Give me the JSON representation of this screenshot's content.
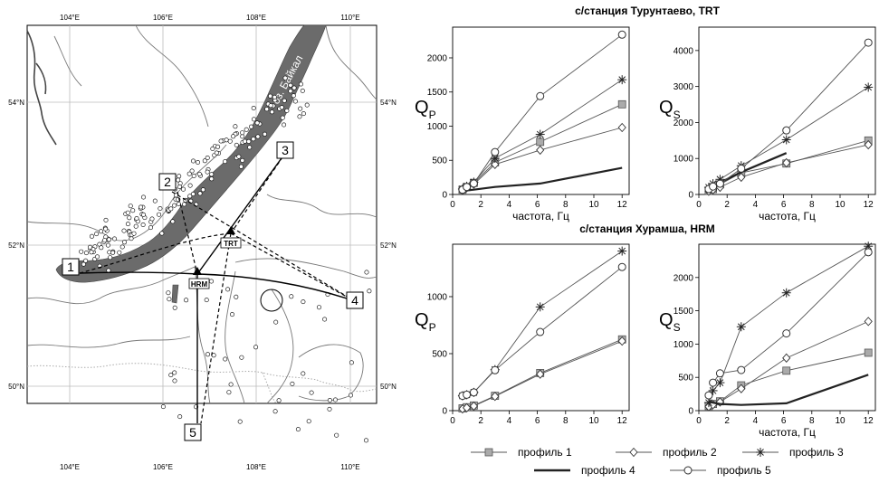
{
  "map": {
    "lon_labels": [
      "104°E",
      "106°E",
      "108°E",
      "110°E"
    ],
    "lat_labels_left": [
      "54°N",
      "52°N",
      "50°N"
    ],
    "lat_labels_right": [
      "54°N",
      "52°N",
      "50°N"
    ],
    "lake_label": "оз. Байкал",
    "profile_numbers": [
      "1",
      "2",
      "3",
      "4",
      "5"
    ],
    "stations": [
      "TRT",
      "HRM"
    ]
  },
  "legend": {
    "items": [
      {
        "label": "профиль 1",
        "marker": "square-gray"
      },
      {
        "label": "профиль 2",
        "marker": "diamond-open"
      },
      {
        "label": "профиль 3",
        "marker": "asterisk"
      },
      {
        "label": "профиль 4",
        "marker": "none-thick"
      },
      {
        "label": "профиль 5",
        "marker": "circle-open"
      }
    ]
  },
  "chart_data": [
    {
      "type": "line",
      "station_title": "с/станция Турунтаево, TRT",
      "ylabel": "Q",
      "ylabel_sub": "P",
      "xlabel": "частота, Гц",
      "xlim": [
        0,
        12.5
      ],
      "ylim": [
        0,
        2450
      ],
      "xticks": [
        0,
        2,
        4,
        6,
        8,
        10,
        12
      ],
      "yticks": [
        0,
        500,
        1000,
        1500,
        2000
      ],
      "series": [
        {
          "name": "профиль 1",
          "x": [
            0.7,
            1,
            1.5,
            3,
            6.2,
            12
          ],
          "y": [
            70,
            110,
            170,
            470,
            770,
            1320
          ]
        },
        {
          "name": "профиль 2",
          "x": [
            0.7,
            1,
            1.5,
            3,
            6.2,
            12
          ],
          "y": [
            60,
            100,
            150,
            440,
            650,
            980
          ]
        },
        {
          "name": "профиль 3",
          "x": [
            0.7,
            1,
            1.5,
            3,
            6.2,
            12
          ],
          "y": [
            80,
            120,
            180,
            530,
            880,
            1680
          ]
        },
        {
          "name": "профиль 4",
          "x": [
            0.7,
            1,
            1.5,
            3,
            6.2,
            12
          ],
          "y": [
            40,
            60,
            70,
            110,
            160,
            390
          ]
        },
        {
          "name": "профиль 5",
          "x": [
            0.7,
            1,
            1.5,
            3,
            6.2,
            12
          ],
          "y": [
            70,
            110,
            160,
            620,
            1440,
            2340
          ]
        }
      ]
    },
    {
      "type": "line",
      "ylabel": "Q",
      "ylabel_sub": "S",
      "xlabel": "частота, Гц",
      "xlim": [
        0,
        12.5
      ],
      "ylim": [
        0,
        4650
      ],
      "xticks": [
        0,
        2,
        4,
        6,
        8,
        10,
        12
      ],
      "yticks": [
        0,
        1000,
        2000,
        3000,
        4000
      ],
      "series": [
        {
          "name": "профиль 1",
          "x": [
            0.7,
            1,
            1.5,
            3,
            6.2,
            12
          ],
          "y": [
            100,
            150,
            280,
            600,
            860,
            1500
          ]
        },
        {
          "name": "профиль 2",
          "x": [
            0.7,
            1,
            1.5,
            3,
            6.2,
            12
          ],
          "y": [
            90,
            130,
            200,
            480,
            880,
            1380
          ]
        },
        {
          "name": "профиль 3",
          "x": [
            0.7,
            1,
            1.5,
            3,
            6.2,
            12
          ],
          "y": [
            200,
            300,
            420,
            800,
            1520,
            2980
          ]
        },
        {
          "name": "профиль 4",
          "x": [
            0.7,
            1,
            1.5,
            3,
            6.2
          ],
          "y": [
            180,
            260,
            330,
            620,
            1150
          ]
        },
        {
          "name": "профиль 5",
          "x": [
            0.7,
            1,
            1.5,
            3,
            6.2,
            12
          ],
          "y": [
            150,
            220,
            300,
            720,
            1780,
            4220
          ]
        }
      ]
    },
    {
      "type": "line",
      "station_title": "с/станция Хурамша, HRM",
      "ylabel": "Q",
      "ylabel_sub": "P",
      "xlabel": "",
      "xlim": [
        0,
        12.5
      ],
      "ylim": [
        0,
        1460
      ],
      "xticks": [
        0,
        2,
        4,
        6,
        8,
        10,
        12
      ],
      "yticks": [
        0,
        500,
        1000
      ],
      "series": [
        {
          "name": "профиль 1",
          "x": [
            0.7,
            1,
            1.5,
            3,
            6.2,
            12
          ],
          "y": [
            20,
            30,
            45,
            130,
            330,
            625
          ]
        },
        {
          "name": "профиль 2",
          "x": [
            0.7,
            1,
            1.5,
            3,
            6.2,
            12
          ],
          "y": [
            15,
            25,
            40,
            125,
            320,
            610
          ]
        },
        {
          "name": "профиль 3",
          "x": [
            0.7,
            1,
            1.5,
            3,
            6.2,
            12
          ],
          "y": [
            130,
            140,
            160,
            360,
            910,
            1400
          ]
        },
        {
          "name": "профиль 5",
          "x": [
            0.7,
            1,
            1.5,
            3,
            6.2,
            12
          ],
          "y": [
            130,
            140,
            160,
            355,
            690,
            1260
          ]
        }
      ]
    },
    {
      "type": "line",
      "ylabel": "Q",
      "ylabel_sub": "S",
      "xlabel": "частота, Гц",
      "xlim": [
        0,
        12.5
      ],
      "ylim": [
        0,
        2500
      ],
      "xticks": [
        0,
        2,
        4,
        6,
        8,
        10,
        12
      ],
      "yticks": [
        0,
        500,
        1000,
        1500,
        2000
      ],
      "series": [
        {
          "name": "профиль 1",
          "x": [
            0.7,
            1,
            1.5,
            3,
            6.2,
            12
          ],
          "y": [
            70,
            100,
            140,
            380,
            600,
            870
          ]
        },
        {
          "name": "профиль 2",
          "x": [
            0.7,
            1,
            1.5,
            3,
            6.2,
            12
          ],
          "y": [
            60,
            90,
            130,
            330,
            790,
            1340
          ]
        },
        {
          "name": "профиль 3",
          "x": [
            0.7,
            1,
            1.5,
            3,
            6.2,
            12
          ],
          "y": [
            120,
            300,
            420,
            1260,
            1770,
            2470
          ]
        },
        {
          "name": "профиль 4",
          "x": [
            0.7,
            1,
            1.5,
            3,
            6.2,
            12
          ],
          "y": [
            140,
            120,
            100,
            85,
            110,
            540
          ]
        },
        {
          "name": "профиль 5",
          "x": [
            0.7,
            1,
            1.5,
            3,
            6.2,
            12
          ],
          "y": [
            230,
            420,
            560,
            610,
            1160,
            2380
          ]
        }
      ]
    }
  ]
}
